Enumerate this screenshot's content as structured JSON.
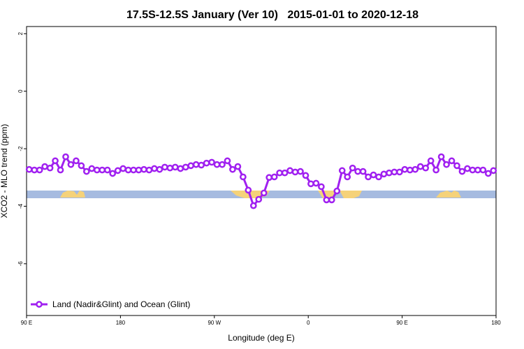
{
  "chart_data": {
    "type": "line",
    "title": "17.5S-12.5S January (Ver 10)   2015-01-01 to 2020-12-18",
    "xlabel": "Longitude (deg E)",
    "ylabel": "XCO2 - MLO trend (ppm)",
    "xlim": [
      90,
      540
    ],
    "xticks": [
      {
        "value": 90,
        "label": "90 E"
      },
      180,
      {
        "value": 270,
        "label": "90 W"
      },
      {
        "value": 360,
        "label": "0"
      },
      {
        "value": 450,
        "label": "90 E"
      },
      {
        "value": 540,
        "label": "180"
      }
    ],
    "ylim": [
      -7.8,
      2.25
    ],
    "yticks": [
      -6,
      -4,
      -2,
      0,
      2
    ],
    "legend": "bottom-left",
    "x": [
      92.5,
      97.5,
      102.5,
      107.5,
      112.5,
      117.5,
      122.5,
      127.5,
      132.5,
      137.5,
      142.5,
      147.5,
      152.5,
      157.5,
      162.5,
      167.5,
      172.5,
      177.5,
      182.5,
      187.5,
      192.5,
      197.5,
      202.5,
      207.5,
      212.5,
      217.5,
      222.5,
      227.5,
      232.5,
      237.5,
      242.5,
      247.5,
      252.5,
      257.5,
      262.5,
      267.5,
      272.5,
      277.5,
      282.5,
      287.5,
      292.5,
      297.5,
      302.5,
      307.5,
      312.5,
      317.5,
      322.5,
      327.5,
      332.5,
      337.5,
      342.5,
      347.5,
      352.5,
      357.5,
      362.5,
      367.5,
      372.5,
      377.5,
      382.5,
      387.5,
      392.5,
      397.5,
      402.5,
      407.5,
      412.5,
      417.5,
      422.5,
      427.5,
      432.5,
      437.5,
      442.5,
      447.5,
      452.5,
      457.5,
      462.5,
      467.5,
      472.5,
      477.5,
      482.5,
      487.5,
      492.5,
      497.5,
      502.5,
      507.5,
      512.5,
      517.5,
      522.5,
      527.5,
      532.5,
      537.5
    ],
    "series": [
      {
        "name": "Land (Nadir&Glint) and Ocean (Glint)",
        "color": "#a020f0",
        "values": [
          -2.72,
          -2.74,
          -2.74,
          -2.62,
          -2.67,
          -2.42,
          -2.74,
          -2.28,
          -2.55,
          -2.42,
          -2.59,
          -2.79,
          -2.69,
          -2.74,
          -2.74,
          -2.74,
          -2.86,
          -2.76,
          -2.69,
          -2.74,
          -2.74,
          -2.74,
          -2.72,
          -2.74,
          -2.69,
          -2.72,
          -2.64,
          -2.67,
          -2.64,
          -2.69,
          -2.64,
          -2.59,
          -2.55,
          -2.57,
          -2.5,
          -2.47,
          -2.55,
          -2.55,
          -2.42,
          -2.72,
          -2.62,
          -2.98,
          -3.44,
          -3.98,
          -3.76,
          -3.54,
          -3.0,
          -2.98,
          -2.84,
          -2.84,
          -2.76,
          -2.81,
          -2.79,
          -2.93,
          -3.22,
          -3.2,
          -3.32,
          -3.78,
          -3.78,
          -3.47,
          -2.76,
          -2.98,
          -2.67,
          -2.79,
          -2.79,
          -2.98,
          -2.91,
          -2.98,
          -2.88,
          -2.84,
          -2.81,
          -2.81,
          -2.72,
          -2.74,
          -2.72,
          -2.62,
          -2.67,
          -2.42,
          -2.74,
          -2.28,
          -2.55,
          -2.42,
          -2.59,
          -2.79,
          -2.69,
          -2.74,
          -2.74,
          -2.74,
          -2.86,
          -2.76
        ]
      }
    ]
  }
}
